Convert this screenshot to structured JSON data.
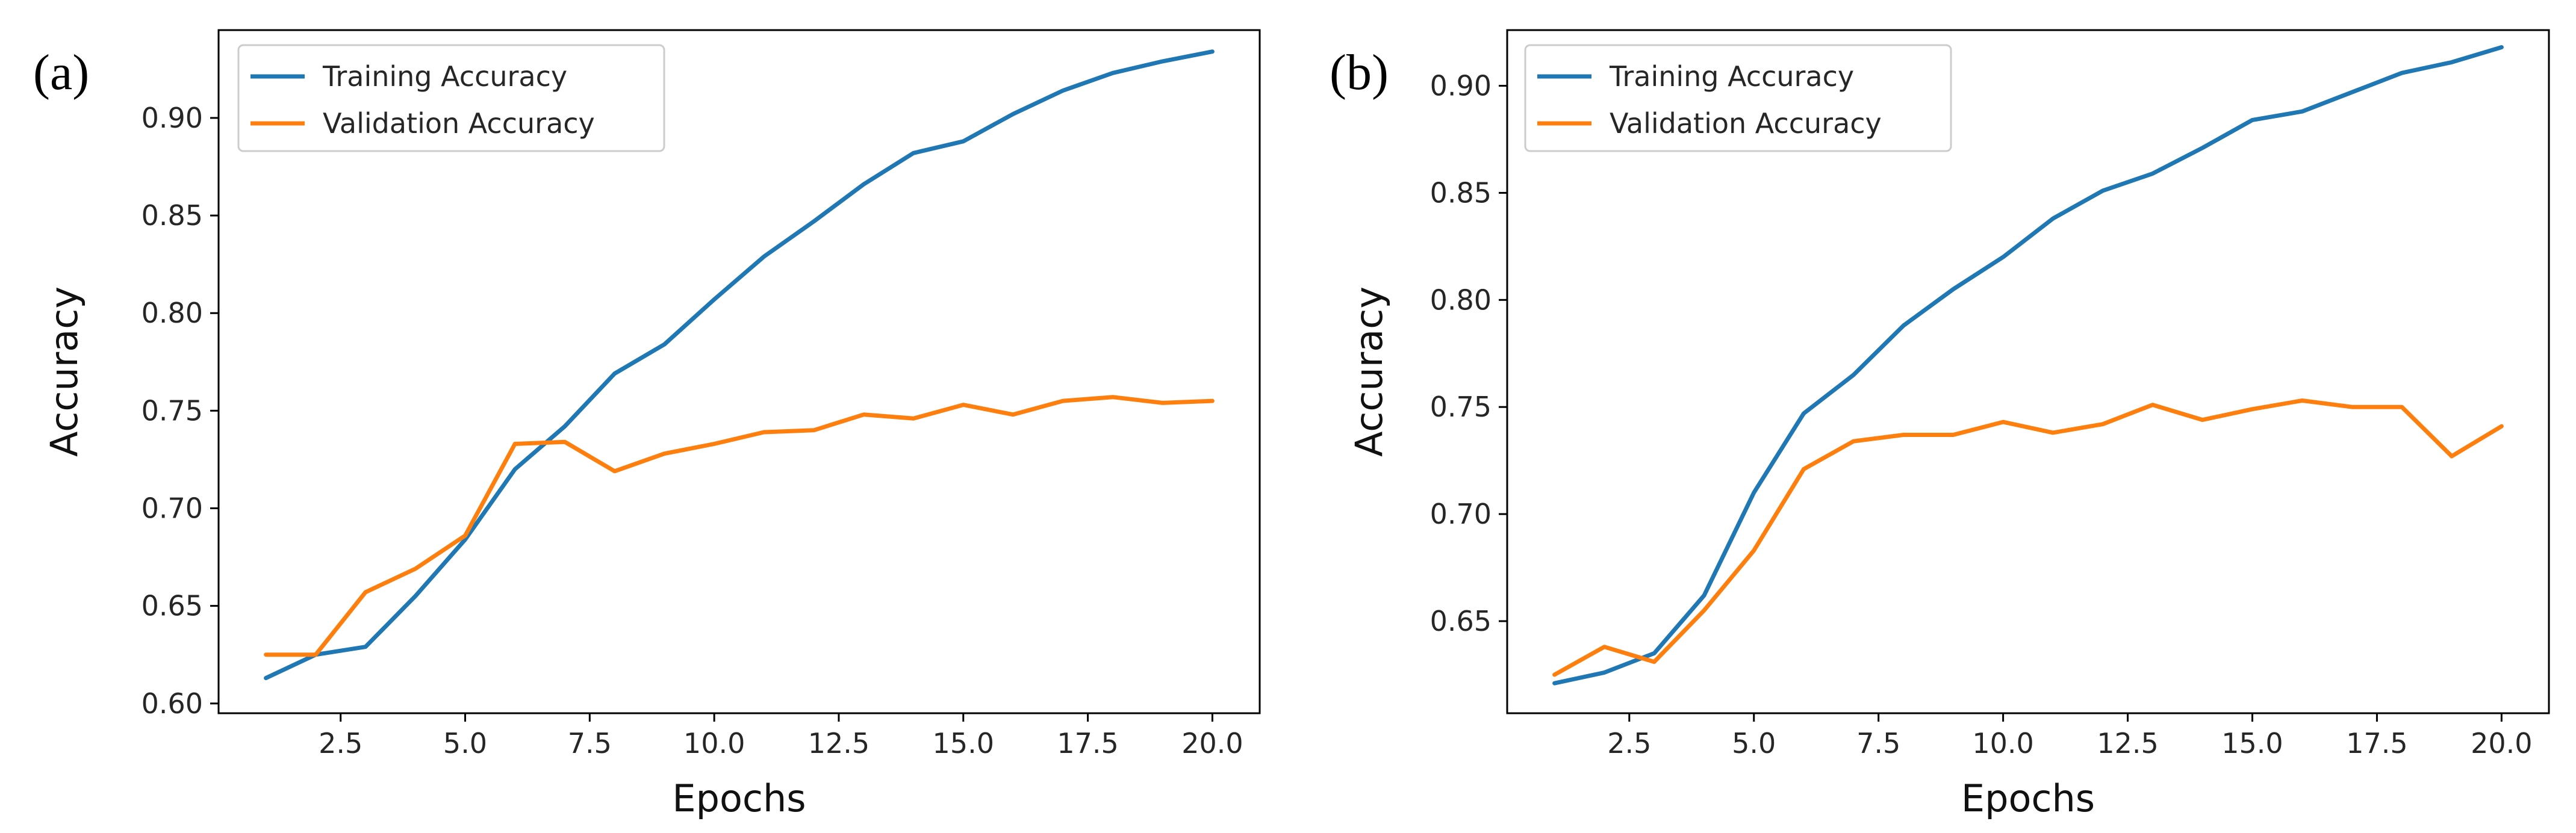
{
  "chart_data": [
    {
      "type": "line",
      "panel_label": "(a)",
      "xlabel": "Epochs",
      "ylabel": "Accuracy",
      "xlim": [
        0.05,
        20.95
      ],
      "ylim": [
        0.595,
        0.945
      ],
      "xticks": [
        2.5,
        5.0,
        7.5,
        10.0,
        12.5,
        15.0,
        17.5,
        20.0
      ],
      "xtick_labels": [
        "2.5",
        "5.0",
        "7.5",
        "10.0",
        "12.5",
        "15.0",
        "17.5",
        "20.0"
      ],
      "yticks": [
        0.6,
        0.65,
        0.7,
        0.75,
        0.8,
        0.85,
        0.9
      ],
      "ytick_labels": [
        "0.60",
        "0.65",
        "0.70",
        "0.75",
        "0.80",
        "0.85",
        "0.90"
      ],
      "grid": false,
      "legend_position": "top-left",
      "x": [
        1,
        2,
        3,
        4,
        5,
        6,
        7,
        8,
        9,
        10,
        11,
        12,
        13,
        14,
        15,
        16,
        17,
        18,
        19,
        20
      ],
      "series": [
        {
          "name": "Training Accuracy",
          "color": "#1f77b4",
          "values": [
            0.613,
            0.625,
            0.629,
            0.655,
            0.684,
            0.72,
            0.742,
            0.769,
            0.784,
            0.807,
            0.829,
            0.847,
            0.866,
            0.882,
            0.888,
            0.902,
            0.914,
            0.923,
            0.929,
            0.934
          ]
        },
        {
          "name": "Validation Accuracy",
          "color": "#ff7f0e",
          "values": [
            0.625,
            0.625,
            0.657,
            0.669,
            0.686,
            0.733,
            0.734,
            0.719,
            0.728,
            0.733,
            0.739,
            0.74,
            0.748,
            0.746,
            0.753,
            0.748,
            0.755,
            0.757,
            0.754,
            0.755
          ]
        }
      ]
    },
    {
      "type": "line",
      "panel_label": "(b)",
      "xlabel": "Epochs",
      "ylabel": "Accuracy",
      "xlim": [
        0.05,
        20.95
      ],
      "ylim": [
        0.607,
        0.926
      ],
      "xticks": [
        2.5,
        5.0,
        7.5,
        10.0,
        12.5,
        15.0,
        17.5,
        20.0
      ],
      "xtick_labels": [
        "2.5",
        "5.0",
        "7.5",
        "10.0",
        "12.5",
        "15.0",
        "17.5",
        "20.0"
      ],
      "yticks": [
        0.65,
        0.7,
        0.75,
        0.8,
        0.85,
        0.9
      ],
      "ytick_labels": [
        "0.65",
        "0.70",
        "0.75",
        "0.80",
        "0.85",
        "0.90"
      ],
      "grid": false,
      "legend_position": "top-left",
      "x": [
        1,
        2,
        3,
        4,
        5,
        6,
        7,
        8,
        9,
        10,
        11,
        12,
        13,
        14,
        15,
        16,
        17,
        18,
        19,
        20
      ],
      "series": [
        {
          "name": "Training Accuracy",
          "color": "#1f77b4",
          "values": [
            0.621,
            0.626,
            0.635,
            0.662,
            0.71,
            0.747,
            0.765,
            0.788,
            0.805,
            0.82,
            0.838,
            0.851,
            0.859,
            0.871,
            0.884,
            0.888,
            0.897,
            0.906,
            0.911,
            0.918
          ]
        },
        {
          "name": "Validation Accuracy",
          "color": "#ff7f0e",
          "values": [
            0.625,
            0.638,
            0.631,
            0.655,
            0.683,
            0.721,
            0.734,
            0.737,
            0.737,
            0.743,
            0.738,
            0.742,
            0.751,
            0.744,
            0.749,
            0.753,
            0.75,
            0.75,
            0.727,
            0.741
          ]
        }
      ]
    }
  ]
}
